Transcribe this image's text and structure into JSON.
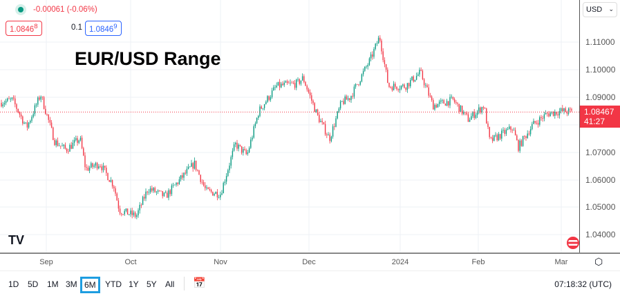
{
  "header": {
    "change": "-0.00061 (-0.06%)",
    "bid": "1.0846",
    "bid_sup": "8",
    "spread": "0.1",
    "ask": "1.0846",
    "ask_sup": "9",
    "status_color": "#089981"
  },
  "title": "EUR/USD Range",
  "price_axis": {
    "currency": "USD",
    "labels": [
      "1.11000",
      "1.10000",
      "1.09000",
      "1.07000",
      "1.06000",
      "1.05000",
      "1.04000"
    ],
    "current_price": "1.08467",
    "countdown": "41:27",
    "current_color": "#f23645"
  },
  "time_axis": {
    "labels": [
      "Sep",
      "Oct",
      "Nov",
      "Dec",
      "2024",
      "Feb",
      "Mar"
    ]
  },
  "ranges": [
    "1D",
    "5D",
    "1M",
    "3M",
    "6M",
    "YTD",
    "1Y",
    "5Y",
    "All"
  ],
  "selected_range": "6M",
  "clock": "07:18:32 (UTC)",
  "chart_data": {
    "type": "candlestick",
    "colors": {
      "up": "#089981",
      "down": "#f23645"
    },
    "ylim": [
      1.035,
      1.1255
    ],
    "path": [
      [
        "2023-08-15",
        1.088
      ],
      [
        "2023-08-20",
        1.089
      ],
      [
        "2023-08-25",
        1.079
      ],
      [
        "2023-08-30",
        1.091
      ],
      [
        "2023-09-04",
        1.074
      ],
      [
        "2023-09-08",
        1.071
      ],
      [
        "2023-09-13",
        1.075
      ],
      [
        "2023-09-15",
        1.064
      ],
      [
        "2023-09-20",
        1.066
      ],
      [
        "2023-09-25",
        1.058
      ],
      [
        "2023-09-27",
        1.049
      ],
      [
        "2023-10-03",
        1.047
      ],
      [
        "2023-10-07",
        1.057
      ],
      [
        "2023-10-13",
        1.054
      ],
      [
        "2023-10-17",
        1.059
      ],
      [
        "2023-10-23",
        1.066
      ],
      [
        "2023-10-27",
        1.056
      ],
      [
        "2023-11-01",
        1.055
      ],
      [
        "2023-11-06",
        1.073
      ],
      [
        "2023-11-10",
        1.069
      ],
      [
        "2023-11-14",
        1.085
      ],
      [
        "2023-11-20",
        1.094
      ],
      [
        "2023-11-27",
        1.095
      ],
      [
        "2023-11-29",
        1.097
      ],
      [
        "2023-12-04",
        1.083
      ],
      [
        "2023-12-08",
        1.075
      ],
      [
        "2023-12-12",
        1.088
      ],
      [
        "2023-12-15",
        1.09
      ],
      [
        "2023-12-19",
        1.098
      ],
      [
        "2023-12-22",
        1.104
      ],
      [
        "2023-12-25",
        1.112
      ],
      [
        "2023-12-28",
        1.094
      ],
      [
        "2024-01-03",
        1.094
      ],
      [
        "2024-01-09",
        1.099
      ],
      [
        "2024-01-14",
        1.087
      ],
      [
        "2024-01-22",
        1.089
      ],
      [
        "2024-01-28",
        1.082
      ],
      [
        "2024-02-03",
        1.087
      ],
      [
        "2024-02-05",
        1.074
      ],
      [
        "2024-02-13",
        1.079
      ],
      [
        "2024-02-15",
        1.072
      ],
      [
        "2024-02-20",
        1.08
      ],
      [
        "2024-02-25",
        1.084
      ],
      [
        "2024-03-01",
        1.085
      ],
      [
        "2024-03-05",
        1.0847
      ]
    ]
  }
}
